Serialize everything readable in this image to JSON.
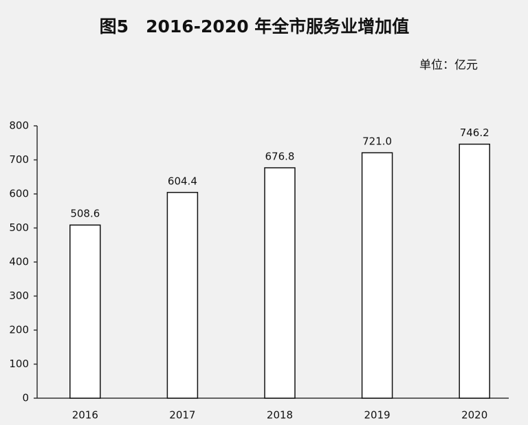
{
  "chart_data": {
    "type": "bar",
    "title": "图5　2016-2020 年全市服务业增加值",
    "subtitle": "单位：亿元",
    "categories": [
      "2016",
      "2017",
      "2018",
      "2019",
      "2020"
    ],
    "values": [
      508.6,
      604.4,
      676.8,
      721,
      746.2
    ],
    "value_labels": [
      "508.6",
      "604.4",
      "676.8",
      "721.0",
      "746.2"
    ],
    "color": "#ffffff",
    "ylim": [
      0,
      800
    ],
    "yticks": [
      0,
      100,
      200,
      300,
      400,
      500,
      600,
      700,
      800
    ],
    "grid": false
  }
}
